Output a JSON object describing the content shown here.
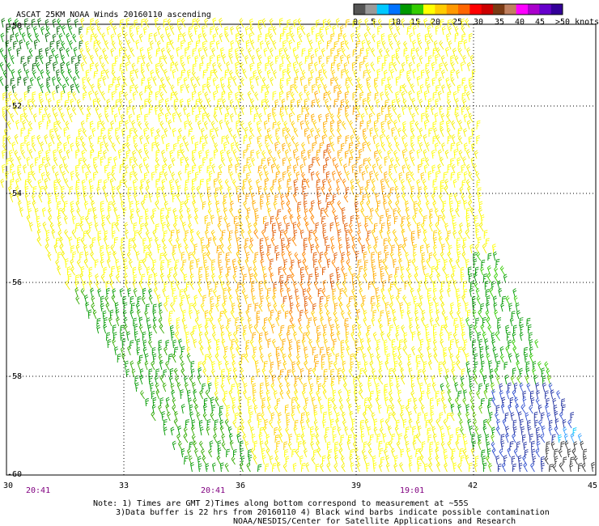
{
  "title": "ASCAT 25KM NOAA Winds 20160110 ascending",
  "colorbar": {
    "labels": [
      "0",
      "5",
      "10",
      "15",
      "20",
      "25",
      "30",
      "35",
      "40",
      "45",
      ">50 knots"
    ],
    "colors": [
      "#555555",
      "#9a9a9a",
      "#00c8ff",
      "#0072ff",
      "#009900",
      "#33cc00",
      "#ffff00",
      "#ffcc00",
      "#ff9900",
      "#ff6600",
      "#ff0000",
      "#cc0000",
      "#7a3a14",
      "#c08060",
      "#ff00ff",
      "#aa00cc",
      "#6600cc",
      "#330099"
    ]
  },
  "axes": {
    "lat_labels": [
      "-50",
      "-52",
      "-54",
      "-56",
      "-58",
      "-60"
    ],
    "lon_labels": [
      "30",
      "33",
      "36",
      "39",
      "42",
      "45"
    ],
    "times": [
      "20:41",
      "20:41",
      "19:01"
    ]
  },
  "notes": {
    "line1": "Note: 1) Times are GMT 2)Times along bottom correspond to measurement at ~55S",
    "line2": "3)Data buffer is 22 hrs from 20160110 4) Black wind barbs indicate possible contamination",
    "line3": "NOAA/NESDIS/Center for Satellite Applications and Research"
  }
}
